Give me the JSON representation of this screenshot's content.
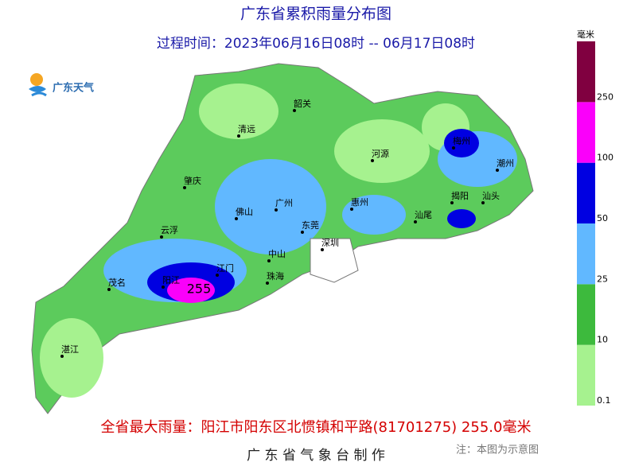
{
  "header": {
    "title": "广东省累积雨量分布图",
    "subtitle": "过程时间：2023年06月16日08时 -- 06月17日08时"
  },
  "logo": "广东天气",
  "legend": {
    "unit": "毫米",
    "labels": [
      "0.1",
      "10",
      "25",
      "50",
      "100",
      "250"
    ],
    "colors": [
      "#a6f28f",
      "#3dba3d",
      "#61b8ff",
      "#0000e1",
      "#fa00fa",
      "#800040"
    ]
  },
  "cities": [
    "韶关",
    "清远",
    "梅州",
    "河源",
    "潮州",
    "肇庆",
    "揭阳",
    "汕头",
    "广州",
    "惠州",
    "佛山",
    "汕尾",
    "东莞",
    "云浮",
    "深圳",
    "中山",
    "江门",
    "阳江",
    "珠海",
    "茂名",
    "湛江"
  ],
  "max_point": "255",
  "footer": {
    "max_rain": "全省最大雨量：阳江市阳东区北惯镇和平路(81701275) 255.0毫米",
    "credit": "广 东 省 气 象 台 制 作",
    "note": "注：本图为示意图"
  }
}
